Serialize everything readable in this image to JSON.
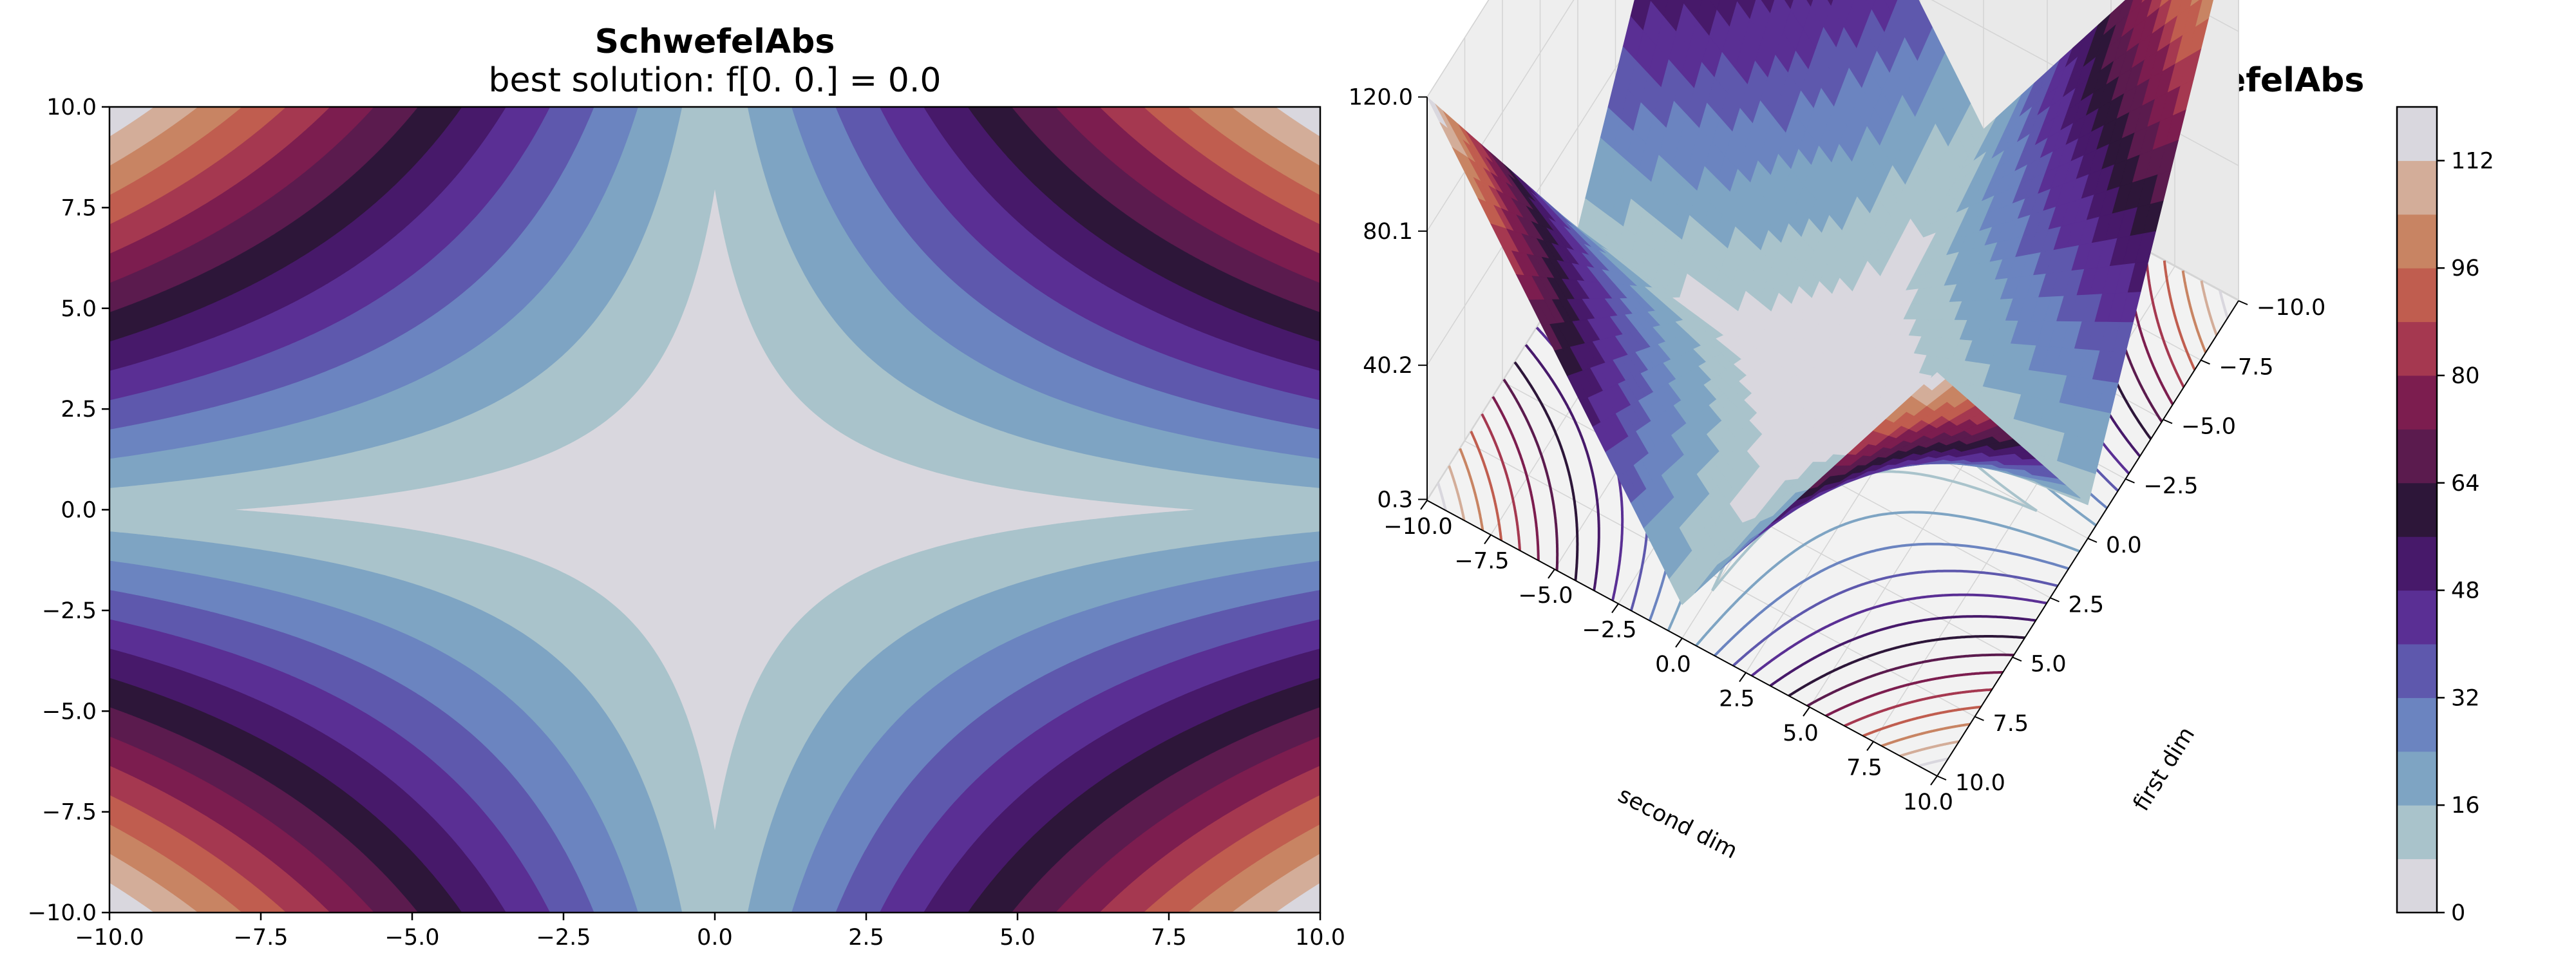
{
  "chart_data": [
    {
      "type": "contour",
      "function": "SchwefelAbs",
      "title": "SchwefelAbs",
      "subtitle": "best solution: f[0. 0.] = 0.0",
      "xlim": [
        -10,
        10
      ],
      "ylim": [
        -10,
        10
      ],
      "xticks": [
        "−10.0",
        "−7.5",
        "−5.0",
        "−2.5",
        "0.0",
        "2.5",
        "5.0",
        "7.5",
        "10.0"
      ],
      "yticks": [
        "10.0",
        "7.5",
        "5.0",
        "2.5",
        "0.0",
        "−2.5",
        "−5.0",
        "−7.5",
        "−10.0"
      ],
      "levels": [
        0,
        8,
        16,
        24,
        32,
        40,
        48,
        56,
        64,
        72,
        80,
        88,
        96,
        104,
        112,
        120
      ],
      "best_point": [
        0,
        0
      ],
      "best_value": 0.0,
      "colormap": "twilight"
    },
    {
      "type": "surface3d",
      "function": "SchwefelAbs",
      "title": "SchwefelAbs",
      "xlabel": "first dim",
      "ylabel": "second dim",
      "xticks": [
        "−10.0",
        "−7.5",
        "−5.0",
        "−2.5",
        "0.0",
        "2.5",
        "5.0",
        "7.5",
        "10.0"
      ],
      "yticks": [
        "−10.0",
        "−7.5",
        "−5.0",
        "−2.5",
        "0.0",
        "2.5",
        "5.0",
        "7.5",
        "10.0"
      ],
      "zticks": [
        "120.0",
        "80.1",
        "40.2",
        "0.3"
      ],
      "zlim": [
        0.3,
        120.0
      ],
      "xlim": [
        -10,
        10
      ],
      "ylim": [
        -10,
        10
      ]
    },
    {
      "type": "colorbar",
      "ticks": [
        "0",
        "16",
        "32",
        "48",
        "64",
        "80",
        "96",
        "112"
      ],
      "range": [
        0,
        120
      ]
    }
  ],
  "colors": {
    "bands": [
      "#d9d7de",
      "#a9c3cb",
      "#7ea4c3",
      "#6b84c0",
      "#5e58ad",
      "#5a2f94",
      "#47196a",
      "#2d1639",
      "#5b1b4e",
      "#7c1d4f",
      "#a53850",
      "#c05d4f",
      "#c88463",
      "#d3ad99",
      "#d9d7de"
    ]
  }
}
